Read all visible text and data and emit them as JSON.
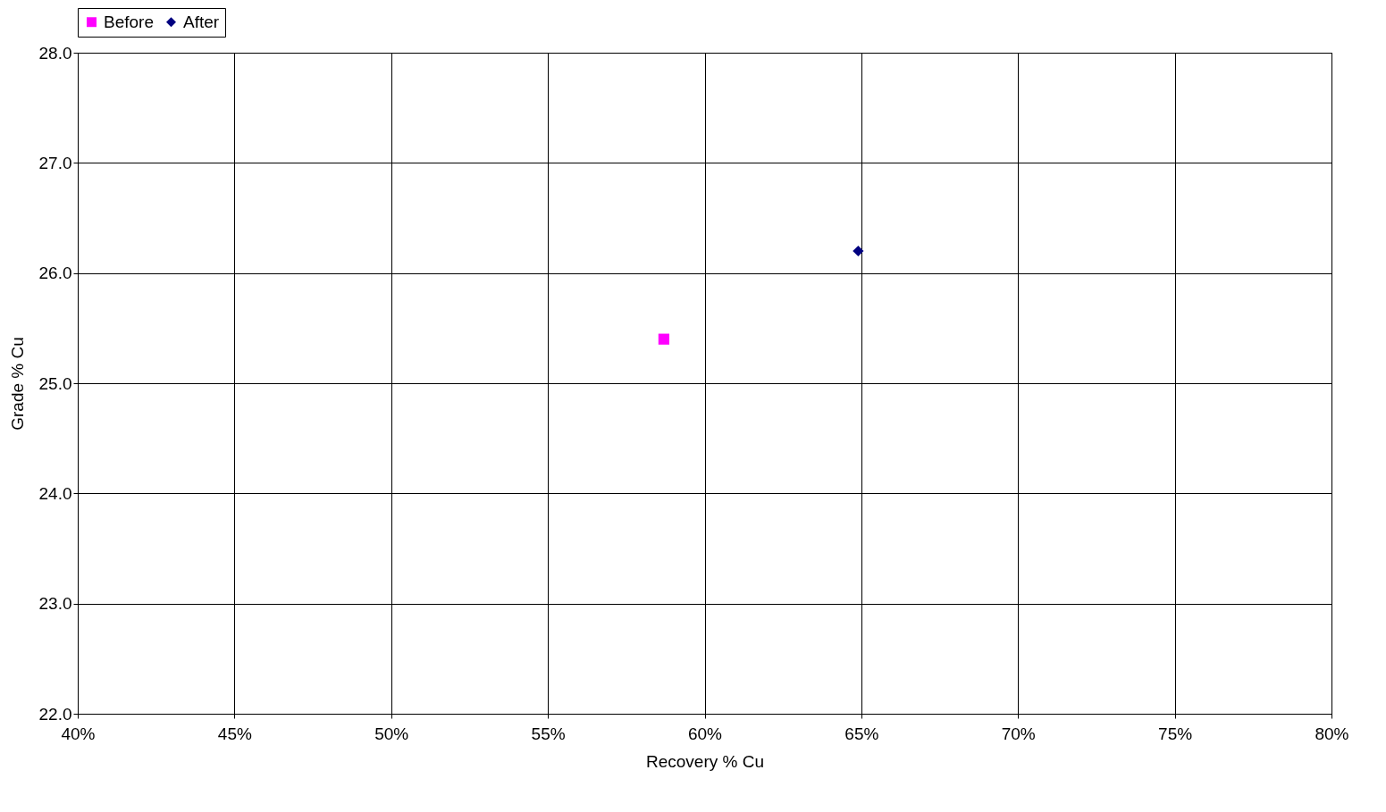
{
  "chart_data": {
    "type": "scatter",
    "xlabel": "Recovery % Cu",
    "ylabel": "Grade % Cu",
    "series": [
      {
        "name": "Before",
        "color": "#ff00ff",
        "marker": "square",
        "x": [
          58.7
        ],
        "values": [
          25.4
        ]
      },
      {
        "name": "After",
        "color": "#000080",
        "marker": "diamond",
        "x": [
          64.9
        ],
        "values": [
          26.2
        ]
      }
    ],
    "xlim": [
      40,
      80
    ],
    "xticks": [
      {
        "value": 40,
        "label": "40%"
      },
      {
        "value": 45,
        "label": "45%"
      },
      {
        "value": 50,
        "label": "50%"
      },
      {
        "value": 55,
        "label": "55%"
      },
      {
        "value": 60,
        "label": "60%"
      },
      {
        "value": 65,
        "label": "65%"
      },
      {
        "value": 70,
        "label": "70%"
      },
      {
        "value": 75,
        "label": "75%"
      },
      {
        "value": 80,
        "label": "80%"
      }
    ],
    "ylim": [
      22,
      28
    ],
    "yticks": [
      {
        "value": 22,
        "label": "22.0"
      },
      {
        "value": 23,
        "label": "23.0"
      },
      {
        "value": 24,
        "label": "24.0"
      },
      {
        "value": 25,
        "label": "25.0"
      },
      {
        "value": 26,
        "label": "26.0"
      },
      {
        "value": 27,
        "label": "27.0"
      },
      {
        "value": 28,
        "label": "28.0"
      }
    ],
    "grid": true,
    "legend": "top"
  }
}
